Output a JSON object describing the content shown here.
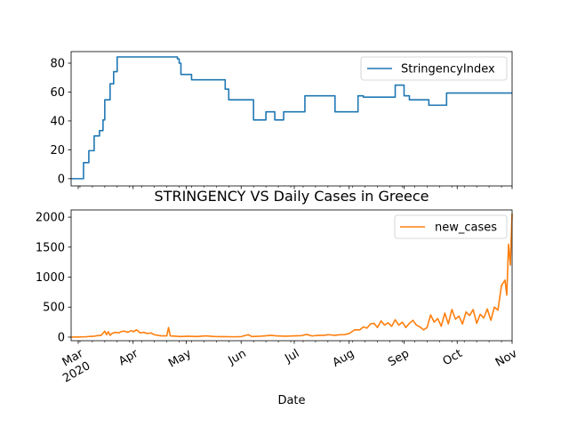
{
  "chart_data": {
    "type": "line",
    "title": "STRINGENCY VS Daily Cases in Greece",
    "xlabel": "Date",
    "x_range": [
      "2020-02-26",
      "2020-11-01"
    ],
    "x_ticks": [
      {
        "date": "2020-03-01",
        "label": "Mar",
        "sublabel": "2020"
      },
      {
        "date": "2020-04-01",
        "label": "Apr"
      },
      {
        "date": "2020-05-01",
        "label": "May"
      },
      {
        "date": "2020-06-01",
        "label": "Jun"
      },
      {
        "date": "2020-07-01",
        "label": "Jul"
      },
      {
        "date": "2020-08-01",
        "label": "Aug"
      },
      {
        "date": "2020-09-01",
        "label": "Sep"
      },
      {
        "date": "2020-10-01",
        "label": "Oct"
      },
      {
        "date": "2020-11-01",
        "label": "Nov"
      }
    ],
    "grid": false,
    "subplots": [
      {
        "series_name": "StringencyIndex",
        "color": "#1f77b4",
        "ylim": [
          -5,
          88
        ],
        "yticks": [
          0,
          20,
          40,
          60,
          80
        ],
        "legend": "upper right",
        "step": true,
        "points": [
          [
            "2020-02-26",
            0
          ],
          [
            "2020-03-04",
            11.1
          ],
          [
            "2020-03-07",
            19.4
          ],
          [
            "2020-03-10",
            29.6
          ],
          [
            "2020-03-13",
            33.3
          ],
          [
            "2020-03-15",
            40.7
          ],
          [
            "2020-03-16",
            54.6
          ],
          [
            "2020-03-19",
            65.7
          ],
          [
            "2020-03-21",
            74.1
          ],
          [
            "2020-03-23",
            84.3
          ],
          [
            "2020-04-26",
            83
          ],
          [
            "2020-04-27",
            80
          ],
          [
            "2020-04-28",
            72.2
          ],
          [
            "2020-05-04",
            68.5
          ],
          [
            "2020-05-23",
            62
          ],
          [
            "2020-05-25",
            54.6
          ],
          [
            "2020-06-08",
            40.7
          ],
          [
            "2020-06-15",
            46.3
          ],
          [
            "2020-06-20",
            40.7
          ],
          [
            "2020-06-25",
            46.3
          ],
          [
            "2020-07-07",
            57.4
          ],
          [
            "2020-07-24",
            46.3
          ],
          [
            "2020-08-06",
            57.4
          ],
          [
            "2020-08-09",
            56.5
          ],
          [
            "2020-08-27",
            64.8
          ],
          [
            "2020-09-01",
            57.4
          ],
          [
            "2020-09-04",
            54.6
          ],
          [
            "2020-09-15",
            50.9
          ],
          [
            "2020-09-25",
            59.3
          ],
          [
            "2020-11-01",
            59.3
          ]
        ]
      },
      {
        "series_name": "new_cases",
        "color": "#ff7f0e",
        "ylim": [
          -60,
          2120
        ],
        "yticks": [
          0,
          500,
          1000,
          1500,
          2000
        ],
        "legend": "upper right",
        "step": false,
        "points": [
          [
            "2020-02-26",
            1
          ],
          [
            "2020-03-01",
            2
          ],
          [
            "2020-03-05",
            5
          ],
          [
            "2020-03-08",
            12
          ],
          [
            "2020-03-10",
            15
          ],
          [
            "2020-03-12",
            25
          ],
          [
            "2020-03-14",
            30
          ],
          [
            "2020-03-16",
            100
          ],
          [
            "2020-03-17",
            40
          ],
          [
            "2020-03-18",
            90
          ],
          [
            "2020-03-19",
            30
          ],
          [
            "2020-03-20",
            60
          ],
          [
            "2020-03-22",
            80
          ],
          [
            "2020-03-24",
            70
          ],
          [
            "2020-03-25",
            90
          ],
          [
            "2020-03-27",
            100
          ],
          [
            "2020-03-29",
            80
          ],
          [
            "2020-03-31",
            110
          ],
          [
            "2020-04-01",
            90
          ],
          [
            "2020-04-03",
            120
          ],
          [
            "2020-04-05",
            70
          ],
          [
            "2020-04-07",
            80
          ],
          [
            "2020-04-09",
            60
          ],
          [
            "2020-04-11",
            70
          ],
          [
            "2020-04-13",
            40
          ],
          [
            "2020-04-15",
            30
          ],
          [
            "2020-04-17",
            20
          ],
          [
            "2020-04-20",
            20
          ],
          [
            "2020-04-21",
            160
          ],
          [
            "2020-04-22",
            20
          ],
          [
            "2020-04-25",
            15
          ],
          [
            "2020-04-28",
            10
          ],
          [
            "2020-05-02",
            15
          ],
          [
            "2020-05-07",
            10
          ],
          [
            "2020-05-12",
            20
          ],
          [
            "2020-05-17",
            10
          ],
          [
            "2020-05-22",
            8
          ],
          [
            "2020-05-27",
            5
          ],
          [
            "2020-06-01",
            8
          ],
          [
            "2020-06-05",
            40
          ],
          [
            "2020-06-07",
            10
          ],
          [
            "2020-06-12",
            15
          ],
          [
            "2020-06-18",
            30
          ],
          [
            "2020-06-21",
            20
          ],
          [
            "2020-06-26",
            15
          ],
          [
            "2020-07-01",
            20
          ],
          [
            "2020-07-05",
            25
          ],
          [
            "2020-07-08",
            45
          ],
          [
            "2020-07-11",
            20
          ],
          [
            "2020-07-15",
            30
          ],
          [
            "2020-07-18",
            30
          ],
          [
            "2020-07-20",
            40
          ],
          [
            "2020-07-24",
            30
          ],
          [
            "2020-07-27",
            40
          ],
          [
            "2020-07-29",
            40
          ],
          [
            "2020-08-01",
            60
          ],
          [
            "2020-08-04",
            120
          ],
          [
            "2020-08-07",
            120
          ],
          [
            "2020-08-09",
            170
          ],
          [
            "2020-08-11",
            150
          ],
          [
            "2020-08-13",
            220
          ],
          [
            "2020-08-15",
            230
          ],
          [
            "2020-08-17",
            160
          ],
          [
            "2020-08-19",
            270
          ],
          [
            "2020-08-21",
            200
          ],
          [
            "2020-08-23",
            240
          ],
          [
            "2020-08-25",
            180
          ],
          [
            "2020-08-27",
            290
          ],
          [
            "2020-08-29",
            200
          ],
          [
            "2020-08-31",
            250
          ],
          [
            "2020-09-02",
            160
          ],
          [
            "2020-09-04",
            230
          ],
          [
            "2020-09-06",
            280
          ],
          [
            "2020-09-08",
            200
          ],
          [
            "2020-09-10",
            170
          ],
          [
            "2020-09-12",
            120
          ],
          [
            "2020-09-14",
            160
          ],
          [
            "2020-09-16",
            370
          ],
          [
            "2020-09-18",
            250
          ],
          [
            "2020-09-20",
            310
          ],
          [
            "2020-09-22",
            180
          ],
          [
            "2020-09-24",
            400
          ],
          [
            "2020-09-26",
            220
          ],
          [
            "2020-09-28",
            460
          ],
          [
            "2020-09-30",
            300
          ],
          [
            "2020-10-02",
            350
          ],
          [
            "2020-10-04",
            220
          ],
          [
            "2020-10-06",
            420
          ],
          [
            "2020-10-08",
            360
          ],
          [
            "2020-10-10",
            460
          ],
          [
            "2020-10-12",
            230
          ],
          [
            "2020-10-14",
            380
          ],
          [
            "2020-10-16",
            320
          ],
          [
            "2020-10-18",
            470
          ],
          [
            "2020-10-20",
            280
          ],
          [
            "2020-10-22",
            500
          ],
          [
            "2020-10-24",
            450
          ],
          [
            "2020-10-26",
            860
          ],
          [
            "2020-10-28",
            950
          ],
          [
            "2020-10-29",
            700
          ],
          [
            "2020-10-30",
            1550
          ],
          [
            "2020-10-31",
            1200
          ],
          [
            "2020-11-01",
            2060
          ]
        ]
      }
    ]
  }
}
